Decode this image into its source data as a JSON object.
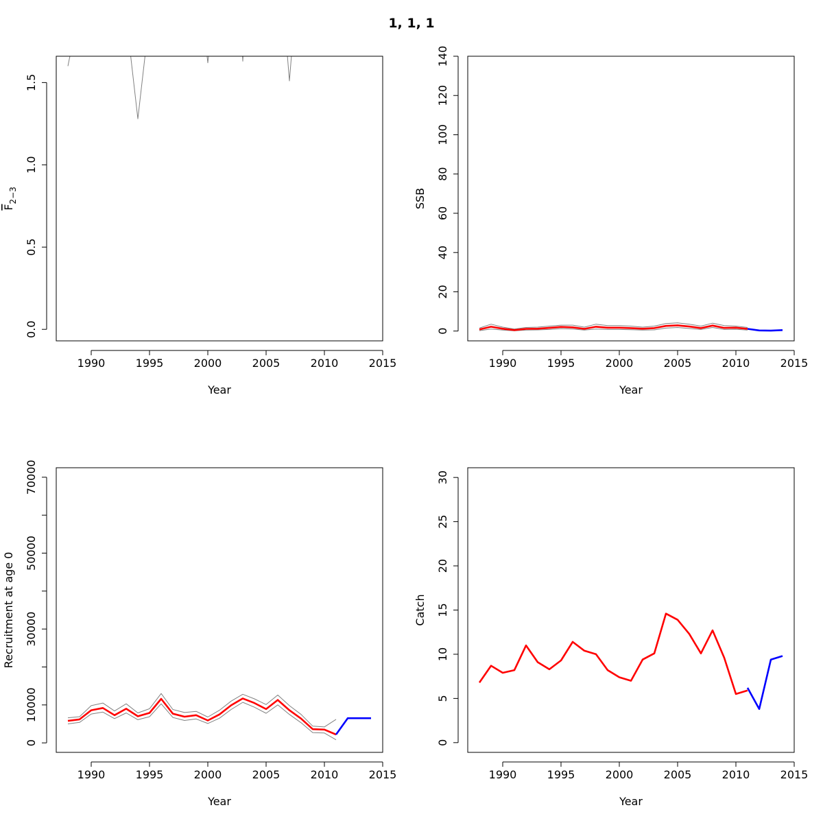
{
  "figure": {
    "title": "1, 1, 1"
  },
  "colors": {
    "historical": "#ff0000",
    "forecast": "#0000ff",
    "bounds": "#808080",
    "axes": "#000000"
  },
  "chart_data": [
    {
      "id": "fbar",
      "type": "line",
      "xlabel": "Year",
      "ylabel_main": "F",
      "ylabel_sub": "2−3",
      "xlim": [
        1987,
        2015
      ],
      "ylim": [
        -0.07,
        1.66
      ],
      "xticks": [
        1990,
        1995,
        2000,
        2005,
        2010,
        2015
      ],
      "yticks": [
        0,
        0.5,
        1,
        1.5
      ],
      "ytick_labels": [
        "0.0",
        "0.5",
        "1.0",
        "1.5"
      ],
      "series": [
        {
          "role": "upper",
          "x": [
            1988,
            1989
          ],
          "y": [
            1.6,
            1.95
          ]
        },
        {
          "role": "lower",
          "x": [
            1993,
            1994,
            1995
          ],
          "y": [
            1.9,
            1.28,
            1.9
          ]
        },
        {
          "role": "lower",
          "x": [
            1999.5,
            2000,
            2000.5
          ],
          "y": [
            1.95,
            1.62,
            1.95
          ]
        },
        {
          "role": "lower",
          "x": [
            2002.8,
            2003,
            2003.2
          ],
          "y": [
            1.9,
            1.63,
            1.9
          ]
        },
        {
          "role": "lower",
          "x": [
            2006.5,
            2007,
            2007.5
          ],
          "y": [
            1.95,
            1.51,
            1.95
          ]
        },
        {
          "role": "lower",
          "x": [
            2009.95,
            2010,
            2010.05
          ],
          "y": [
            1.7,
            1.66,
            1.7
          ]
        }
      ]
    },
    {
      "id": "ssb",
      "type": "line",
      "xlabel": "Year",
      "ylabel": "SSB",
      "xlim": [
        1987,
        2015
      ],
      "ylim": [
        -5,
        140
      ],
      "xticks": [
        1990,
        1995,
        2000,
        2005,
        2010,
        2015
      ],
      "yticks": [
        0,
        20,
        40,
        60,
        80,
        100,
        120,
        140
      ],
      "ytick_labels": [
        "0",
        "20",
        "40",
        "60",
        "80",
        "100",
        "120",
        "140"
      ],
      "series": [
        {
          "role": "upper",
          "x": [
            1988,
            1989,
            1990,
            1991,
            1992,
            1993,
            1994,
            1995,
            1996,
            1997,
            1998,
            1999,
            2000,
            2001,
            2002,
            2003,
            2004,
            2005,
            2006,
            2007,
            2008,
            2009,
            2010,
            2011
          ],
          "y": [
            1.5,
            3.5,
            2.0,
            1.0,
            1.8,
            2.0,
            2.5,
            3.0,
            3.0,
            2.0,
            3.5,
            2.8,
            2.8,
            2.5,
            2.0,
            2.5,
            3.8,
            4.2,
            3.5,
            2.5,
            4.0,
            2.8,
            2.5,
            1.8
          ]
        },
        {
          "role": "lower",
          "x": [
            1988,
            1989,
            1990,
            1991,
            1992,
            1993,
            1994,
            1995,
            1996,
            1997,
            1998,
            1999,
            2000,
            2001,
            2002,
            2003,
            2004,
            2005,
            2006,
            2007,
            2008,
            2009,
            2010,
            2011
          ],
          "y": [
            0.2,
            1.0,
            0.5,
            0.1,
            0.5,
            0.6,
            0.8,
            1.2,
            1.0,
            0.5,
            1.0,
            0.8,
            0.8,
            0.7,
            0.5,
            0.6,
            1.5,
            1.8,
            1.3,
            0.8,
            1.8,
            0.8,
            0.9,
            0.5
          ]
        },
        {
          "role": "estimate",
          "x": [
            1988,
            1989,
            1990,
            1991,
            1992,
            1993,
            1994,
            1995,
            1996,
            1997,
            1998,
            1999,
            2000,
            2001,
            2002,
            2003,
            2004,
            2005,
            2006,
            2007,
            2008,
            2009,
            2010,
            2011
          ],
          "y": [
            0.8,
            2.2,
            1.2,
            0.5,
            1.1,
            1.2,
            1.6,
            2.1,
            1.9,
            1.1,
            2.2,
            1.7,
            1.7,
            1.5,
            1.2,
            1.5,
            2.6,
            2.9,
            2.3,
            1.5,
            2.8,
            1.6,
            1.7,
            1.1
          ]
        },
        {
          "role": "forecast",
          "x": [
            2011,
            2012,
            2013,
            2014
          ],
          "y": [
            1.1,
            0.3,
            0.2,
            0.5
          ]
        }
      ]
    },
    {
      "id": "recruitment",
      "type": "line",
      "xlabel": "Year",
      "ylabel": "Recruitment at age 0",
      "xlim": [
        1987,
        2015
      ],
      "ylim": [
        -2500,
        72500
      ],
      "xticks": [
        1990,
        1995,
        2000,
        2005,
        2010,
        2015
      ],
      "yticks": [
        0,
        10000,
        20000,
        30000,
        40000,
        50000,
        60000,
        70000
      ],
      "ytick_labels": [
        "0",
        "10000",
        "",
        "30000",
        "",
        "50000",
        "",
        "70000"
      ],
      "series": [
        {
          "role": "upper",
          "x": [
            1988,
            1989,
            1990,
            1991,
            1992,
            1993,
            1994,
            1995,
            1996,
            1997,
            1998,
            1999,
            2000,
            2001,
            2002,
            2003,
            2004,
            2005,
            2006,
            2007,
            2008,
            2009,
            2010,
            2011
          ],
          "y": [
            6600,
            6900,
            9800,
            10500,
            8400,
            10300,
            7900,
            9000,
            13000,
            8800,
            8000,
            8300,
            6800,
            8600,
            11000,
            12800,
            11600,
            10100,
            12600,
            9800,
            7500,
            4400,
            4200,
            6200
          ]
        },
        {
          "role": "lower",
          "x": [
            1988,
            1989,
            1990,
            1991,
            1992,
            1993,
            1994,
            1995,
            1996,
            1997,
            1998,
            1999,
            2000,
            2001,
            2002,
            2003,
            2004,
            2005,
            2006,
            2007,
            2008,
            2009,
            2010,
            2011
          ],
          "y": [
            5000,
            5400,
            7600,
            8100,
            6400,
            7900,
            6100,
            6900,
            10300,
            6700,
            5900,
            6300,
            5100,
            6500,
            8800,
            10700,
            9400,
            7800,
            10000,
            7500,
            5300,
            2700,
            2600,
            800
          ]
        },
        {
          "role": "estimate",
          "x": [
            1988,
            1989,
            1990,
            1991,
            1992,
            1993,
            1994,
            1995,
            1996,
            1997,
            1998,
            1999,
            2000,
            2001,
            2002,
            2003,
            2004,
            2005,
            2006,
            2007,
            2008,
            2009,
            2010,
            2011
          ],
          "y": [
            5800,
            6200,
            8600,
            9200,
            7300,
            9000,
            7000,
            7900,
            11600,
            7700,
            6900,
            7300,
            5900,
            7500,
            9900,
            11700,
            10500,
            8900,
            11300,
            8600,
            6400,
            3600,
            3500,
            2200
          ]
        },
        {
          "role": "forecast",
          "x": [
            2011,
            2012,
            2013,
            2014
          ],
          "y": [
            2200,
            6500,
            6500,
            6500
          ]
        }
      ]
    },
    {
      "id": "catch",
      "type": "line",
      "xlabel": "Year",
      "ylabel": "Catch",
      "xlim": [
        1987,
        2015
      ],
      "ylim": [
        -1.1,
        31.1
      ],
      "xticks": [
        1990,
        1995,
        2000,
        2005,
        2010,
        2015
      ],
      "yticks": [
        0,
        5,
        10,
        15,
        20,
        25,
        30
      ],
      "ytick_labels": [
        "0",
        "5",
        "10",
        "15",
        "20",
        "25",
        "30"
      ],
      "series": [
        {
          "role": "estimate",
          "x": [
            1988,
            1989,
            1990,
            1991,
            1992,
            1993,
            1994,
            1995,
            1996,
            1997,
            1998,
            1999,
            2000,
            2001,
            2002,
            2003,
            2004,
            2005,
            2006,
            2007,
            2008,
            2009,
            2010,
            2011
          ],
          "y": [
            6.8,
            8.7,
            7.9,
            8.2,
            11.0,
            9.1,
            8.3,
            9.3,
            11.4,
            10.4,
            10.0,
            8.2,
            7.4,
            7.0,
            9.4,
            10.1,
            14.6,
            13.9,
            12.3,
            10.1,
            12.7,
            9.6,
            5.5,
            5.9
          ]
        },
        {
          "role": "forecast",
          "x": [
            2011,
            2012,
            2013,
            2014
          ],
          "y": [
            6.2,
            3.8,
            9.4,
            9.8
          ]
        }
      ]
    }
  ]
}
